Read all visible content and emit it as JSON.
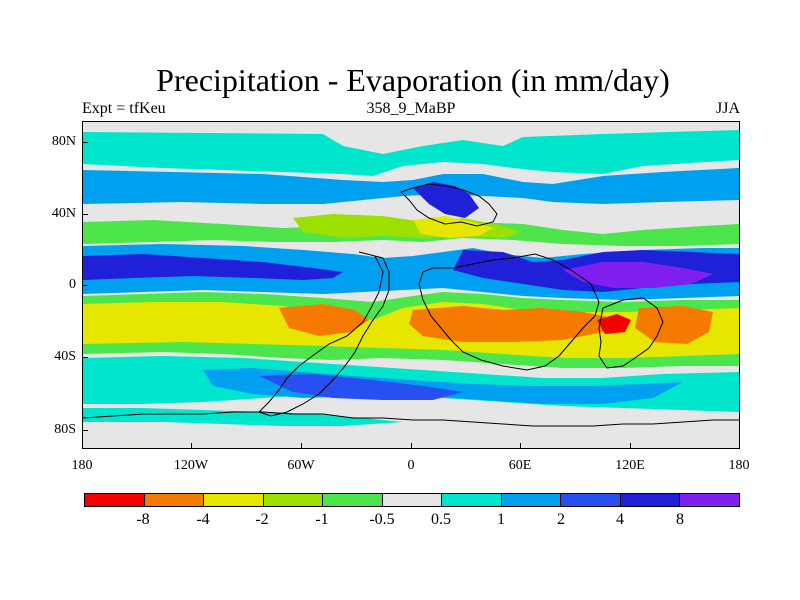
{
  "title": "Precipitation - Evaporation (in mm/day)",
  "subtitle_left": "Expt = tfKeu",
  "subtitle_center": "358_9_MaBP",
  "subtitle_right": "JJA",
  "lat_labels": [
    "80N",
    "40N",
    "0",
    "40S",
    "80S"
  ],
  "lon_labels": [
    "180",
    "120W",
    "60W",
    "0",
    "60E",
    "120E",
    "180"
  ],
  "colorbar": {
    "colors": [
      "#f50000",
      "#f57a00",
      "#e6e600",
      "#9be000",
      "#4ce64c",
      "#e6e6e6",
      "#00e6cc",
      "#00a0f0",
      "#2850f0",
      "#2020d8",
      "#8020f0"
    ],
    "labels": [
      "-8",
      "-4",
      "-2",
      "-1",
      "-0.5",
      "0.5",
      "1",
      "2",
      "4",
      "8"
    ]
  },
  "field_colors": {
    "neutral": "#e6e6e6",
    "cyan": "#00e6cc",
    "light_blue": "#00a0f0",
    "blue": "#2850f0",
    "dark_blue": "#2020d8",
    "violet": "#8020f0",
    "green": "#4ce64c",
    "light_green": "#9be000",
    "yellow": "#e6e600",
    "orange": "#f57a00",
    "red": "#f50000"
  },
  "chart_data": {
    "type": "heatmap",
    "title": "Precipitation - Evaporation (in mm/day)",
    "subtitle": "358_9_MaBP",
    "experiment": "Expt = tfKeu",
    "season": "JJA",
    "units": "mm/day",
    "contour_levels": [
      -8,
      -4,
      -2,
      -1,
      -0.5,
      0.5,
      1,
      2,
      4,
      8
    ],
    "lon_range": [
      -180,
      180
    ],
    "lat_range": [
      -90,
      90
    ],
    "x_ticks": [
      "180",
      "120W",
      "60W",
      "0",
      "60E",
      "120E",
      "180"
    ],
    "y_ticks": [
      "80N",
      "40N",
      "0",
      "40S",
      "80S"
    ],
    "colorbar_position": "bottom"
  }
}
